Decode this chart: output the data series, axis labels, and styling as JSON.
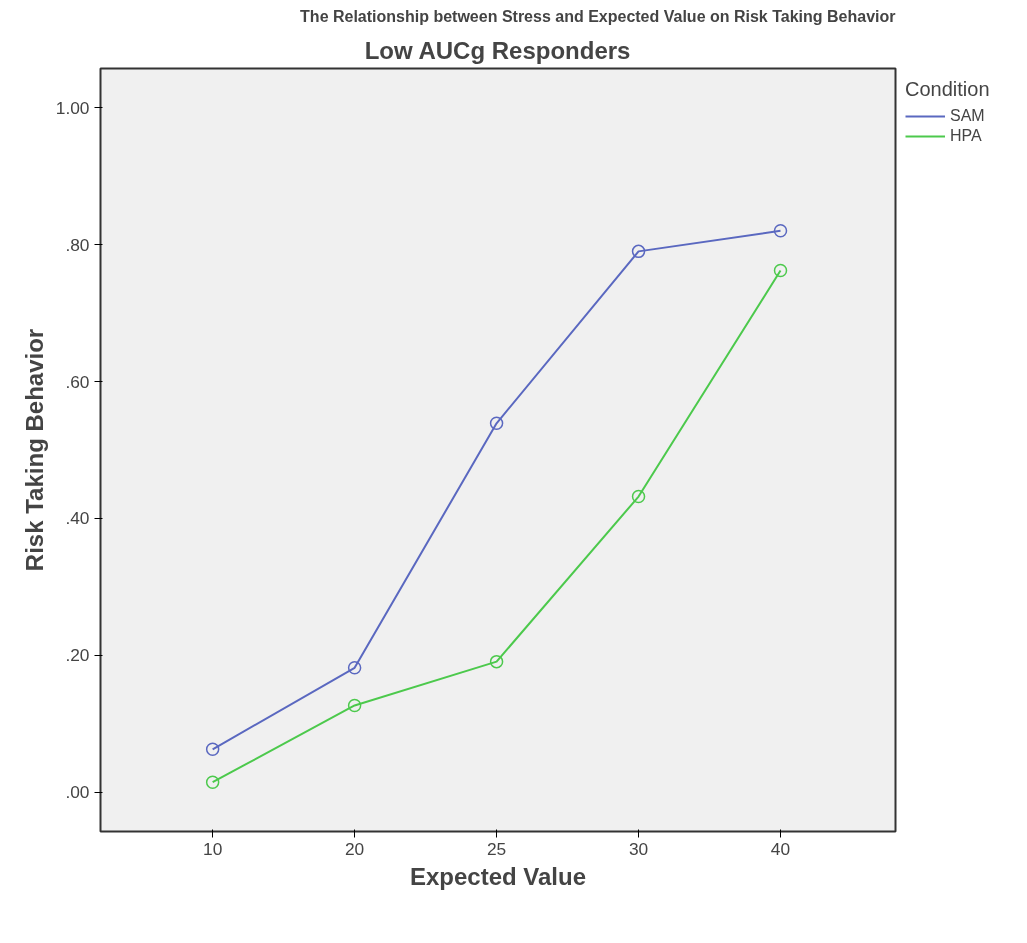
{
  "chart_data": {
    "type": "line",
    "title": "The Relationship between Stress and Expected Value on Risk Taking Behavior",
    "subtitle": "Low AUCg Responders",
    "xlabel": "Expected Value",
    "ylabel": "Risk Taking Behavior",
    "legend_title": "Condition",
    "categories": [
      "10",
      "20",
      "25",
      "30",
      "40"
    ],
    "series": [
      {
        "name": "SAM",
        "color": "#5a68c0",
        "values": [
          0.063,
          0.182,
          0.539,
          0.79,
          0.82
        ]
      },
      {
        "name": "HPA",
        "color": "#4cc94c",
        "values": [
          0.015,
          0.127,
          0.191,
          0.432,
          0.762
        ]
      }
    ],
    "ylim": [
      -0.057,
      1.057
    ],
    "yticks": [
      {
        "value": 0,
        "label": ".00"
      },
      {
        "value": 0.2,
        "label": ".20"
      },
      {
        "value": 0.4,
        "label": ".40"
      },
      {
        "value": 0.6,
        "label": ".60"
      },
      {
        "value": 0.8,
        "label": ".80"
      },
      {
        "value": 1.0,
        "label": "1.00"
      }
    ],
    "grid": false,
    "legend": "top right",
    "marker": "circle",
    "line_style": "solid"
  }
}
